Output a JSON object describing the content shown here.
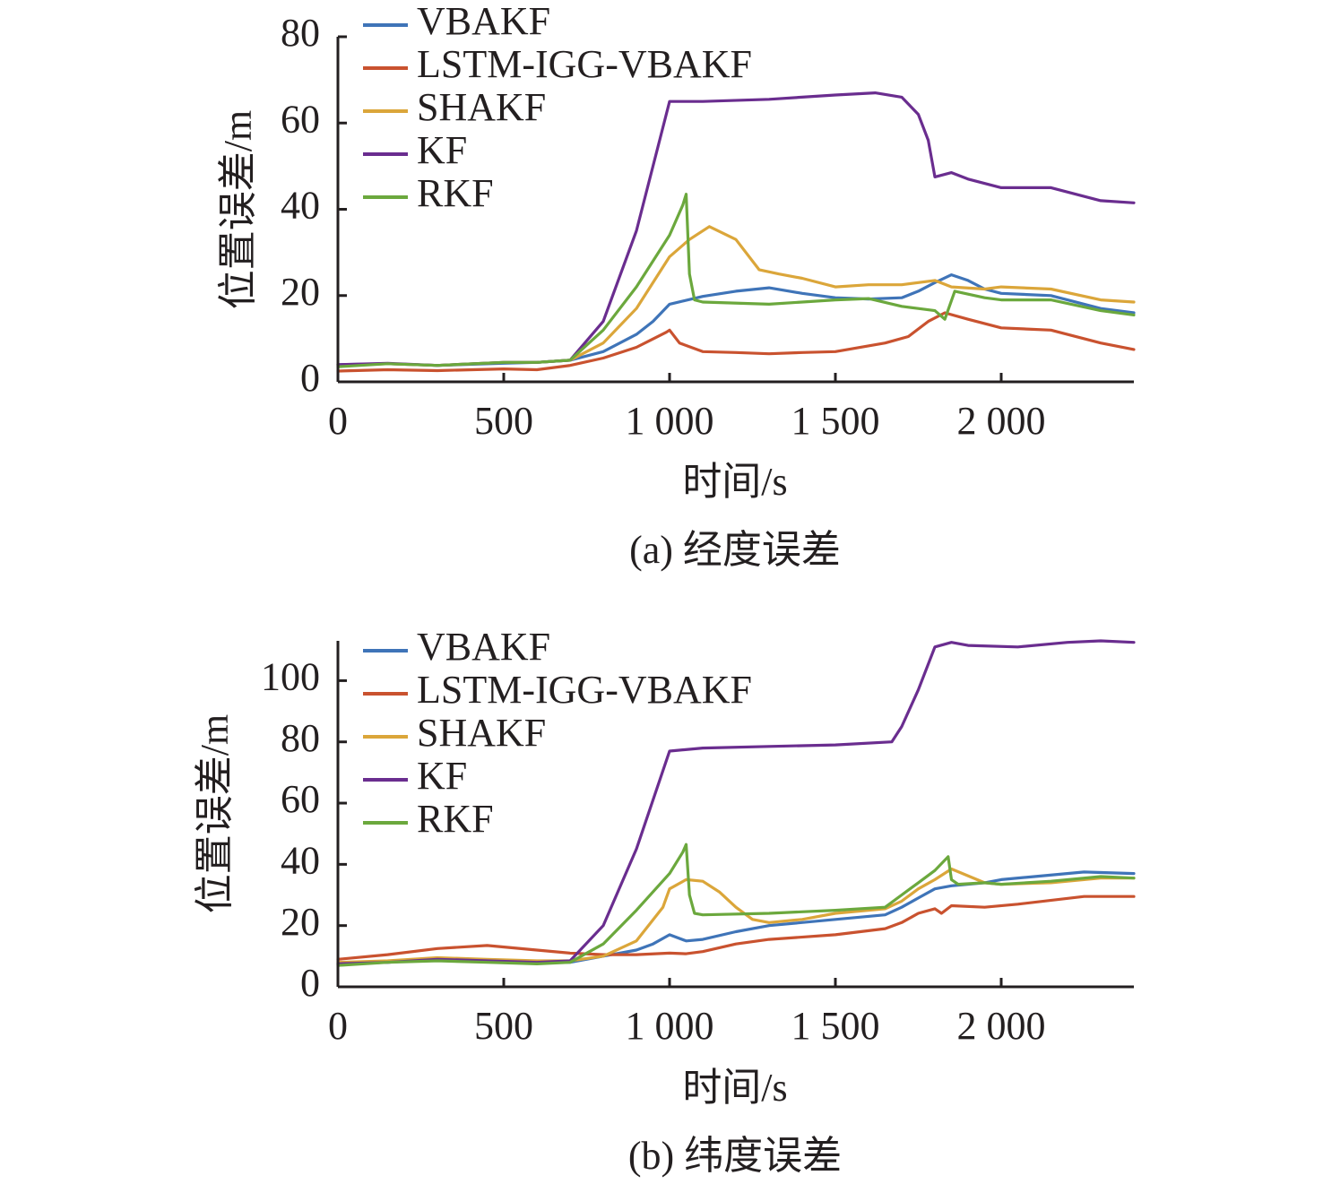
{
  "chart_data": [
    {
      "type": "line",
      "title": "",
      "caption": "(a) 经度误差",
      "xlabel": "时间/s",
      "ylabel": "位置误差/m",
      "xlim": [
        0,
        2400
      ],
      "ylim": [
        0,
        80
      ],
      "xticks": [
        0,
        500,
        1000,
        1500,
        2000
      ],
      "xtick_labels": [
        "0",
        "500",
        "1 000",
        "1 500",
        "2 000"
      ],
      "yticks": [
        0,
        20,
        40,
        60,
        80
      ],
      "ytick_labels": [
        "0",
        "20",
        "40",
        "60",
        "80"
      ],
      "grid": false,
      "legend_position": "top-left",
      "series": [
        {
          "name": "VBAKF",
          "color": "#3f74b8",
          "x": [
            0,
            150,
            300,
            500,
            600,
            700,
            800,
            900,
            950,
            1000,
            1100,
            1200,
            1300,
            1400,
            1500,
            1600,
            1700,
            1750,
            1800,
            1850,
            1900,
            1950,
            2000,
            2150,
            2300,
            2400
          ],
          "y": [
            4,
            4.2,
            3.8,
            4.3,
            4.5,
            5,
            7,
            11,
            14,
            18,
            19.8,
            21,
            21.8,
            20.5,
            19.5,
            19.2,
            19.5,
            21,
            23,
            24.8,
            23.5,
            21.5,
            20.5,
            20,
            17,
            16
          ]
        },
        {
          "name": "LSTM-IGG-VBAKF",
          "color": "#c9522f",
          "x": [
            0,
            150,
            300,
            500,
            600,
            700,
            800,
            900,
            990,
            1000,
            1030,
            1100,
            1200,
            1300,
            1400,
            1500,
            1650,
            1720,
            1780,
            1830,
            1900,
            2000,
            2150,
            2300,
            2400
          ],
          "y": [
            2.5,
            2.8,
            2.6,
            3,
            2.8,
            3.8,
            5.5,
            8,
            11.5,
            12,
            9,
            7,
            6.8,
            6.5,
            6.8,
            7,
            9,
            10.5,
            14,
            16,
            14.5,
            12.5,
            12,
            9,
            7.5
          ]
        },
        {
          "name": "SHAKF",
          "color": "#dba63a",
          "x": [
            0,
            150,
            300,
            500,
            600,
            700,
            800,
            900,
            1000,
            1060,
            1120,
            1200,
            1270,
            1330,
            1400,
            1500,
            1600,
            1700,
            1800,
            1850,
            1950,
            2000,
            2150,
            2300,
            2400
          ],
          "y": [
            3.8,
            4.2,
            3.8,
            4.5,
            4.5,
            5,
            9,
            17,
            29,
            33,
            36,
            33,
            26,
            25,
            24,
            22,
            22.5,
            22.5,
            23.5,
            22,
            21.5,
            22,
            21.5,
            19,
            18.5
          ]
        },
        {
          "name": "KF",
          "color": "#6a2d8f",
          "x": [
            0,
            150,
            300,
            500,
            600,
            700,
            800,
            900,
            1000,
            1100,
            1300,
            1500,
            1620,
            1700,
            1750,
            1780,
            1800,
            1850,
            1900,
            2000,
            2150,
            2300,
            2400
          ],
          "y": [
            4,
            4.3,
            3.8,
            4.5,
            4.5,
            5,
            14,
            35,
            65,
            65,
            65.5,
            66.5,
            67,
            66,
            62,
            56,
            47.5,
            48.5,
            47,
            45,
            45,
            42,
            41.5
          ]
        },
        {
          "name": "RKF",
          "color": "#6ba83d",
          "x": [
            0,
            150,
            300,
            500,
            600,
            700,
            800,
            900,
            1000,
            1040,
            1050,
            1060,
            1075,
            1100,
            1300,
            1500,
            1600,
            1700,
            1750,
            1800,
            1830,
            1860,
            1950,
            2000,
            2150,
            2300,
            2400
          ],
          "y": [
            3.5,
            4.2,
            3.8,
            4.5,
            4.5,
            5,
            12,
            22,
            34,
            41,
            43.5,
            25,
            19,
            18.5,
            18,
            19,
            19.3,
            17.5,
            17,
            16.5,
            14.5,
            21,
            19.5,
            19,
            19,
            16.5,
            15.5
          ]
        }
      ]
    },
    {
      "type": "line",
      "title": "",
      "caption": "(b) 纬度误差",
      "xlabel": "时间/s",
      "ylabel": "位置误差/m",
      "xlim": [
        0,
        2400
      ],
      "ylim": [
        0,
        113
      ],
      "xticks": [
        0,
        500,
        1000,
        1500,
        2000
      ],
      "xtick_labels": [
        "0",
        "500",
        "1 000",
        "1 500",
        "2 000"
      ],
      "yticks": [
        0,
        20,
        40,
        60,
        80,
        100
      ],
      "ytick_labels": [
        "0",
        "20",
        "40",
        "60",
        "80",
        "100"
      ],
      "grid": false,
      "legend_position": "top-left",
      "series": [
        {
          "name": "VBAKF",
          "color": "#3f74b8",
          "x": [
            0,
            150,
            300,
            450,
            600,
            700,
            800,
            900,
            950,
            1000,
            1050,
            1100,
            1200,
            1300,
            1500,
            1650,
            1700,
            1750,
            1800,
            1850,
            1950,
            2000,
            2100,
            2250,
            2400
          ],
          "y": [
            7.5,
            8,
            9,
            8.5,
            8,
            8,
            10,
            12,
            14,
            17,
            15,
            15.5,
            18,
            20,
            22,
            23.5,
            26,
            29,
            32,
            33,
            34,
            35,
            36,
            37.5,
            37
          ]
        },
        {
          "name": "LSTM-IGG-VBAKF",
          "color": "#c9522f",
          "x": [
            0,
            150,
            300,
            450,
            600,
            700,
            800,
            900,
            1000,
            1050,
            1100,
            1200,
            1300,
            1500,
            1650,
            1700,
            1750,
            1800,
            1820,
            1850,
            1950,
            2050,
            2250,
            2400
          ],
          "y": [
            9,
            10.5,
            12.5,
            13.5,
            12,
            11,
            10.5,
            10.5,
            11,
            10.8,
            11.5,
            14,
            15.5,
            17,
            19,
            21,
            24,
            25.5,
            24,
            26.5,
            26,
            27,
            29.5,
            29.5
          ]
        },
        {
          "name": "SHAKF",
          "color": "#dba63a",
          "x": [
            0,
            150,
            300,
            450,
            600,
            700,
            800,
            900,
            980,
            1000,
            1050,
            1100,
            1150,
            1200,
            1250,
            1300,
            1400,
            1500,
            1650,
            1700,
            1750,
            1800,
            1850,
            1950,
            2000,
            2150,
            2300,
            2400
          ],
          "y": [
            8,
            8.5,
            9.5,
            9,
            8.5,
            8.5,
            10,
            15,
            26,
            32,
            35,
            34.5,
            31,
            26,
            22,
            21,
            22,
            24,
            25.5,
            28,
            32,
            35,
            38.5,
            34,
            33.5,
            34,
            35.5,
            35.5
          ]
        },
        {
          "name": "KF",
          "color": "#6a2d8f",
          "x": [
            0,
            150,
            300,
            450,
            600,
            700,
            800,
            900,
            1000,
            1100,
            1300,
            1500,
            1670,
            1700,
            1750,
            1800,
            1850,
            1900,
            2050,
            2200,
            2300,
            2400
          ],
          "y": [
            7.5,
            8,
            9,
            8.5,
            8,
            8.5,
            20,
            45,
            77,
            78,
            78.5,
            79,
            80,
            85,
            97,
            111,
            112.5,
            111.5,
            111,
            112.5,
            113,
            112.5
          ]
        },
        {
          "name": "RKF",
          "color": "#6ba83d",
          "x": [
            0,
            150,
            300,
            450,
            600,
            700,
            800,
            900,
            1000,
            1040,
            1050,
            1060,
            1075,
            1100,
            1300,
            1500,
            1650,
            1700,
            1750,
            1800,
            1840,
            1850,
            1870,
            1950,
            2000,
            2150,
            2300,
            2400
          ],
          "y": [
            7,
            8,
            8.5,
            8,
            7.5,
            8,
            14,
            25,
            37,
            44,
            46.5,
            30,
            24,
            23.5,
            24,
            25,
            26,
            30,
            34,
            38,
            42.5,
            35,
            33.5,
            34,
            33.5,
            34.5,
            36,
            35.5
          ]
        }
      ]
    }
  ]
}
